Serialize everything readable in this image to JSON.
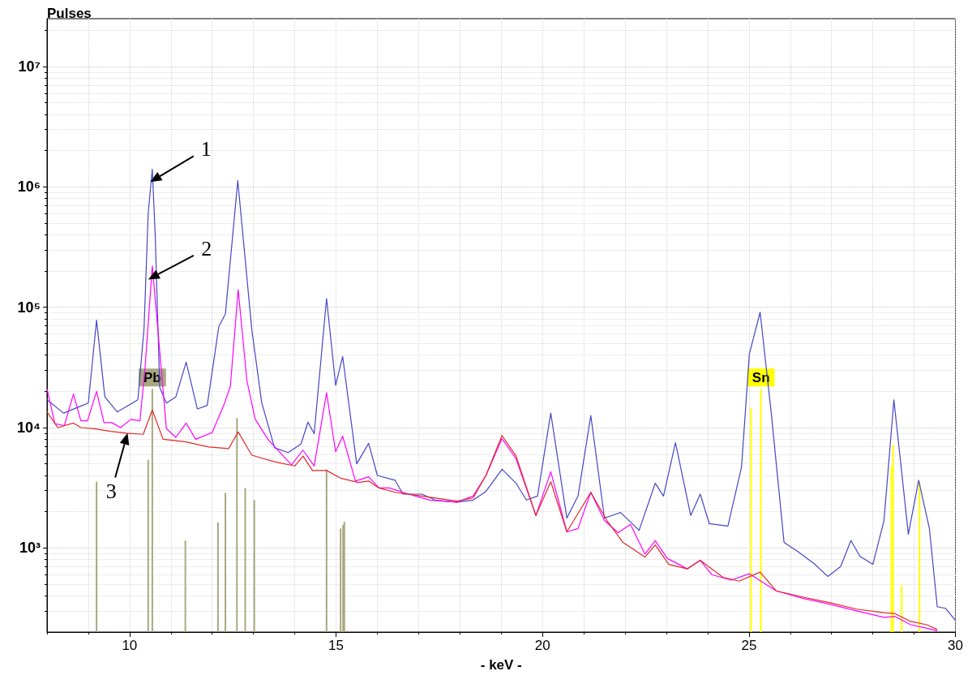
{
  "chart_data": {
    "type": "line",
    "xlabel": "- keV -",
    "ylabel": "Pulses",
    "xlim": [
      8,
      30
    ],
    "xticks": [
      10,
      15,
      20,
      25,
      30
    ],
    "ylim": [
      200,
      25000000
    ],
    "yticks": [
      {
        "value": 1000,
        "label": "10³"
      },
      {
        "value": 10000,
        "label": "10⁴"
      },
      {
        "value": 100000,
        "label": "10⁵"
      },
      {
        "value": 1000000,
        "label": "10⁶"
      },
      {
        "value": 10000000,
        "label": "10⁷"
      }
    ],
    "log": "y",
    "grid": true,
    "legend": false,
    "marker": "none",
    "annotations": [
      {
        "text": "1",
        "x": 10.5,
        "y": 1100000
      },
      {
        "text": "2",
        "x": 10.45,
        "y": 170000
      },
      {
        "text": "3",
        "x": 9.95,
        "y": 9000
      }
    ],
    "series": [
      {
        "type": "bar",
        "name": "Pb",
        "color": "#a8a880",
        "x": [
          9.2,
          10.45,
          10.55,
          11.35,
          12.14,
          12.32,
          12.6,
          12.8,
          13.02,
          14.77,
          15.11,
          15.17,
          15.2
        ],
        "values": [
          3550,
          5400,
          21000,
          1150,
          1630,
          2870,
          12000,
          3150,
          2500,
          4500,
          1450,
          1550,
          1650
        ]
      },
      {
        "type": "bar",
        "name": "Sn",
        "color": "#ffff00",
        "x": [
          25.05,
          25.29,
          28.45,
          28.49,
          28.7,
          29.13
        ],
        "values": [
          14500,
          21000,
          4800,
          7200,
          490,
          3550
        ]
      },
      {
        "color": "#4646c8",
        "x": [
          8.0,
          8.4,
          8.8,
          9.0,
          9.2,
          9.4,
          9.7,
          10.0,
          10.2,
          10.35,
          10.45,
          10.55,
          10.62,
          10.73,
          10.89,
          11.12,
          11.37,
          11.64,
          11.88,
          12.16,
          12.32,
          12.62,
          12.96,
          13.2,
          13.51,
          13.84,
          14.15,
          14.32,
          14.47,
          14.77,
          14.99,
          15.16,
          15.5,
          15.79,
          16.0,
          16.43,
          16.62,
          17.08,
          17.4,
          17.93,
          18.32,
          18.63,
          19.02,
          19.36,
          19.61,
          19.88,
          20.2,
          20.59,
          20.86,
          21.17,
          21.5,
          21.89,
          22.34,
          22.73,
          22.93,
          23.22,
          23.59,
          23.82,
          24.04,
          24.49,
          24.82,
          25.01,
          25.27,
          25.54,
          25.85,
          26.19,
          26.58,
          26.91,
          27.22,
          27.47,
          27.69,
          28.0,
          28.27,
          28.51,
          28.86,
          29.11,
          29.37,
          29.56,
          29.76,
          30.0
        ],
        "values": [
          17000,
          13200,
          15000,
          16000,
          78000,
          18000,
          13500,
          15500,
          17000,
          67000,
          600000,
          1400000,
          400000,
          21600,
          16000,
          18000,
          35000,
          14300,
          15300,
          69000,
          88000,
          1130000,
          65000,
          16100,
          6800,
          6200,
          7300,
          11100,
          8900,
          118000,
          22500,
          39000,
          5000,
          7400,
          4000,
          3650,
          2800,
          2800,
          2500,
          2400,
          2500,
          2950,
          4500,
          3450,
          2500,
          2700,
          13200,
          1770,
          2700,
          12600,
          1770,
          1970,
          1400,
          3450,
          2700,
          7500,
          1860,
          2800,
          1590,
          1520,
          4700,
          41000,
          91000,
          13200,
          1110,
          930,
          740,
          580,
          700,
          1150,
          850,
          730,
          1690,
          17000,
          1300,
          3650,
          1450,
          325,
          315,
          250
        ]
      },
      {
        "color": "#ff00ff",
        "x": [
          8.0,
          8.19,
          8.42,
          8.64,
          8.82,
          8.98,
          9.2,
          9.38,
          9.57,
          9.78,
          10.03,
          10.25,
          10.37,
          10.55,
          10.77,
          10.89,
          11.12,
          11.37,
          11.6,
          12.0,
          12.29,
          12.44,
          12.63,
          12.84,
          13.04,
          13.36,
          13.92,
          14.2,
          14.47,
          14.77,
          14.99,
          15.16,
          15.47,
          15.79,
          16.04,
          16.29,
          16.76,
          17.27,
          17.93,
          18.32,
          18.63,
          19.02,
          19.36,
          19.84,
          20.2,
          20.59,
          20.86,
          21.17,
          21.5,
          21.83,
          22.13,
          22.48,
          22.73,
          23.02,
          23.51,
          23.82,
          24.1,
          24.57,
          25.01,
          25.66,
          26.32,
          26.97,
          27.61,
          28.27,
          28.53,
          28.92,
          29.31,
          29.56
        ],
        "values": [
          21000,
          10800,
          10400,
          19000,
          11400,
          11400,
          20000,
          11000,
          11000,
          10000,
          11700,
          11400,
          30000,
          220000,
          30000,
          9800,
          8300,
          10900,
          8000,
          9100,
          15600,
          22000,
          140000,
          24700,
          11800,
          7900,
          4900,
          6500,
          4800,
          19500,
          6300,
          8500,
          3600,
          3900,
          3150,
          3150,
          2800,
          2500,
          2400,
          2700,
          4000,
          8100,
          5500,
          1860,
          4300,
          1360,
          1450,
          2900,
          1690,
          1340,
          1570,
          890,
          1150,
          820,
          670,
          790,
          600,
          540,
          610,
          440,
          380,
          340,
          300,
          265,
          270,
          230,
          215,
          205
        ]
      },
      {
        "color": "#e02828",
        "x": [
          8.0,
          8.26,
          8.64,
          8.82,
          9.14,
          9.54,
          9.93,
          10.33,
          10.55,
          10.81,
          11.37,
          11.92,
          12.4,
          12.63,
          12.96,
          13.51,
          14.0,
          14.2,
          14.43,
          14.77,
          15.11,
          15.54,
          15.79,
          16.04,
          16.43,
          17.08,
          17.93,
          18.32,
          18.63,
          19.02,
          19.36,
          19.84,
          20.2,
          20.59,
          21.17,
          21.56,
          21.95,
          22.48,
          22.73,
          23.06,
          23.51,
          23.82,
          24.37,
          24.76,
          25.27,
          25.66,
          26.32,
          26.97,
          27.61,
          28.27,
          28.53,
          28.92,
          29.31,
          29.56
        ],
        "values": [
          13500,
          10000,
          10900,
          10000,
          9800,
          9300,
          9000,
          8800,
          14000,
          8000,
          7600,
          6900,
          6700,
          9200,
          5900,
          5200,
          4800,
          5800,
          4400,
          4400,
          3800,
          3500,
          3600,
          3150,
          2900,
          2700,
          2450,
          2600,
          4000,
          8600,
          5800,
          1860,
          3550,
          1360,
          2900,
          1690,
          1110,
          840,
          1060,
          730,
          670,
          790,
          570,
          530,
          630,
          440,
          390,
          350,
          310,
          290,
          285,
          245,
          230,
          210
        ]
      }
    ]
  }
}
